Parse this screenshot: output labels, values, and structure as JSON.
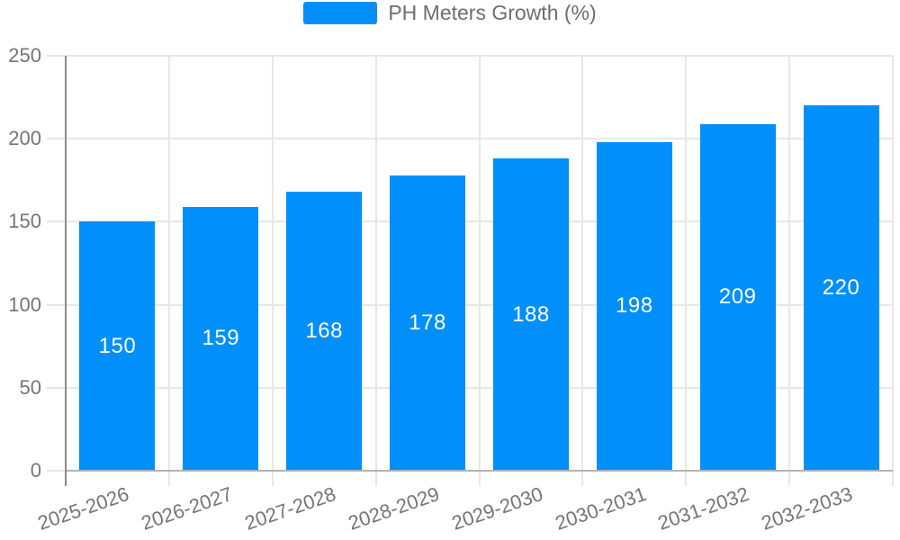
{
  "legend": {
    "label": "PH Meters Growth (%)"
  },
  "chart_data": {
    "type": "bar",
    "title": "",
    "xlabel": "",
    "ylabel": "",
    "series_name": "PH Meters Growth (%)",
    "categories": [
      "2025-2026",
      "2026-2027",
      "2027-2028",
      "2028-2029",
      "2029-2030",
      "2030-2031",
      "2031-2032",
      "2032-2033"
    ],
    "values": [
      150,
      159,
      168,
      178,
      188,
      198,
      209,
      220
    ],
    "bar_value_labels": [
      "150",
      "159",
      "168",
      "178",
      "188",
      "198",
      "209",
      "220"
    ],
    "ylim": [
      0,
      250
    ],
    "ytick_step": 50,
    "yticks": [
      "0",
      "50",
      "100",
      "150",
      "200",
      "250"
    ],
    "grid": true,
    "legend_position": "top",
    "x_label_rotation_deg": -19,
    "colors": {
      "bar": "#008FFB",
      "bar_value_text": "#ffffff",
      "axis_text": "#757575",
      "legend_text": "#6e6e6e",
      "gridline": "#e7e7e7",
      "y_axis_line": "#8b8b8b",
      "x_axis_line": "#b2b2b2"
    }
  }
}
